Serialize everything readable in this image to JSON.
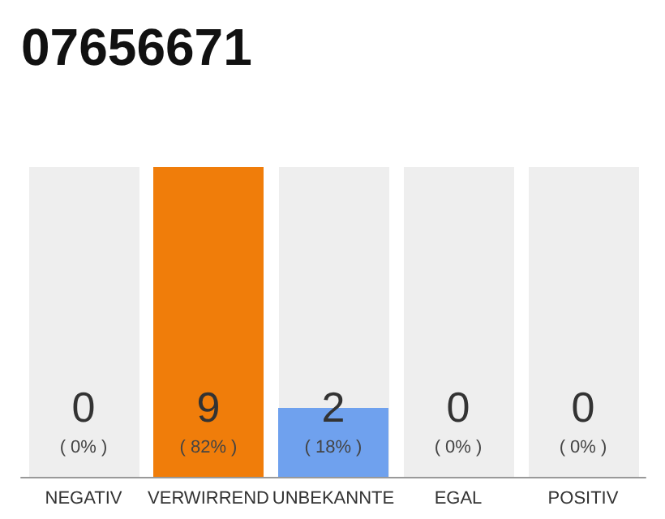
{
  "chart_data": {
    "type": "bar",
    "title": "07656671",
    "categories": [
      "NEGATIV",
      "VERWIRREND",
      "UNBEKANNTE",
      "EGAL",
      "POSITIV"
    ],
    "values": [
      0,
      9,
      2,
      0,
      0
    ],
    "colors": [
      "#6fa1ee",
      "#f07d0a",
      "#6fa1ee",
      "#6fa1ee",
      "#6fa1ee"
    ],
    "data_labels": true,
    "bands": [
      {
        "axis": "x",
        "from": "NEGATIV",
        "to": "NEGATIV",
        "color": "#eeeeee"
      },
      {
        "axis": "x",
        "from": "UNBEKANNTE",
        "to": "UNBEKANNTE",
        "color": "#eeeeee"
      },
      {
        "axis": "x",
        "from": "EGAL",
        "to": "EGAL",
        "color": "#eeeeee"
      },
      {
        "axis": "x",
        "from": "POSITIV",
        "to": "POSITIV",
        "color": "#eeeeee"
      }
    ],
    "annotations": [
      "( 0% )",
      "( 82% )",
      "( 18% )",
      "( 0% )",
      "( 0% )"
    ]
  }
}
